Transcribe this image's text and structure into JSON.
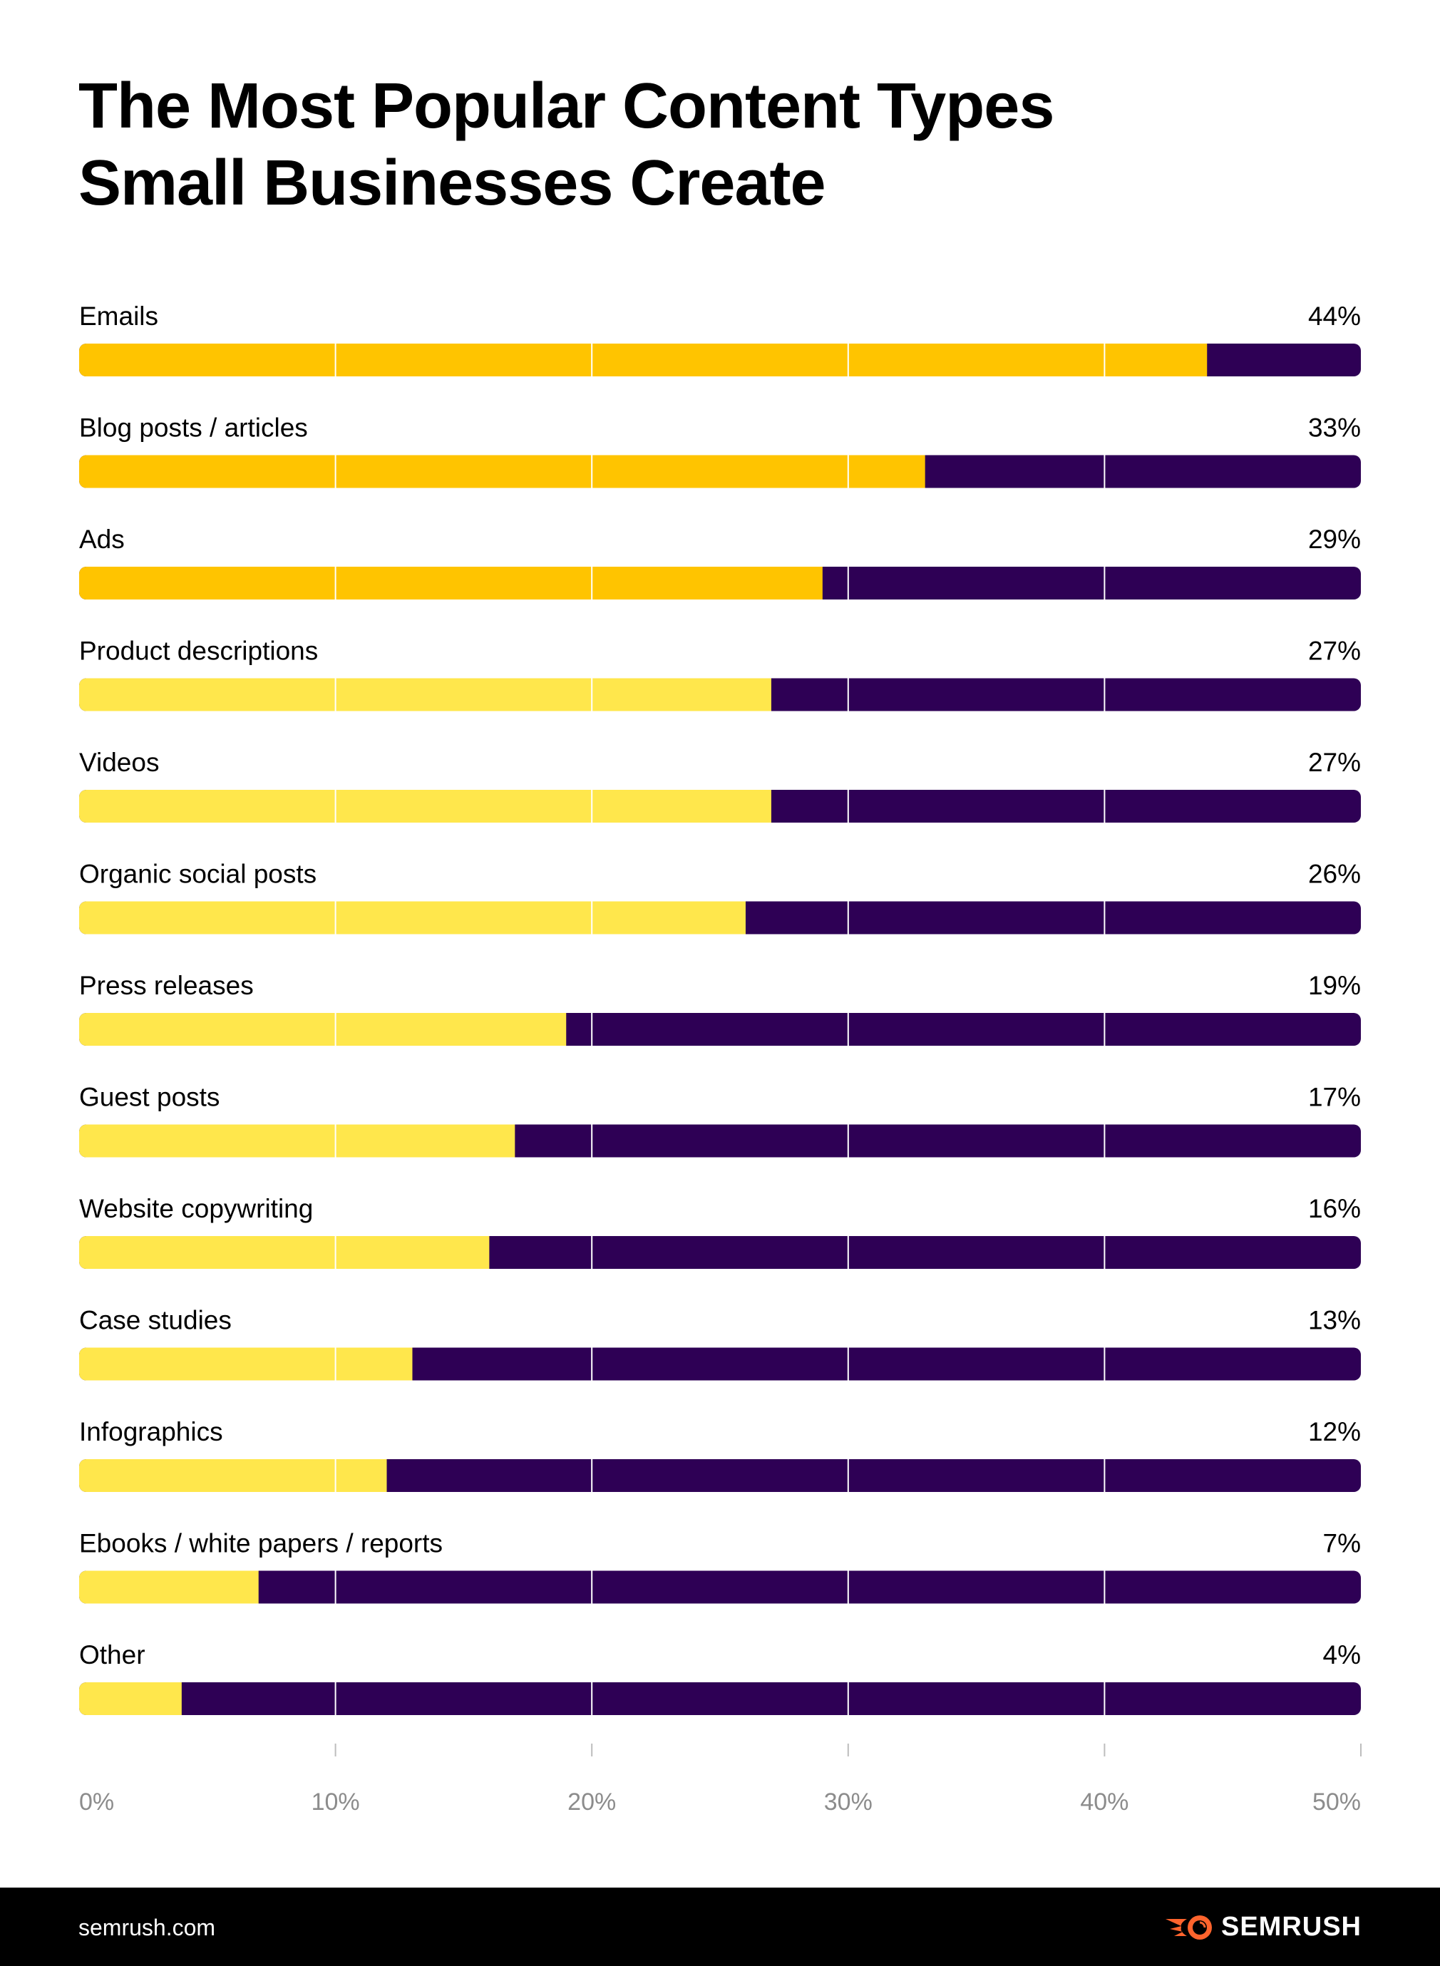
{
  "chart_data": {
    "type": "bar",
    "orientation": "horizontal",
    "title": "The Most Popular Content Types Small Businesses Create",
    "title_lines": [
      "The Most Popular Content Types",
      "Small Businesses Create"
    ],
    "categories": [
      "Emails",
      "Blog posts / articles",
      "Ads",
      "Product descriptions",
      "Videos",
      "Organic social posts",
      "Press releases",
      "Guest posts",
      "Website copywriting",
      "Case studies",
      "Infographics",
      "Ebooks / white papers / reports",
      "Other"
    ],
    "values": [
      44,
      33,
      29,
      27,
      27,
      26,
      19,
      17,
      16,
      13,
      12,
      7,
      4
    ],
    "value_labels": [
      "44%",
      "33%",
      "29%",
      "27%",
      "27%",
      "26%",
      "19%",
      "17%",
      "16%",
      "13%",
      "12%",
      "7%",
      "4%"
    ],
    "highlighted_count": 3,
    "xlim": [
      0,
      50
    ],
    "x_ticks": [
      0,
      10,
      20,
      30,
      40,
      50
    ],
    "x_tick_labels": [
      "0%",
      "10%",
      "20%",
      "30%",
      "40%",
      "50%"
    ],
    "grid": true,
    "xlabel": "",
    "ylabel": "",
    "colors": {
      "highlight": "#FFC400",
      "fill": "#FFE74C",
      "track": "#2E0055",
      "grid": "#FFFFFF",
      "tick_label": "#8C8C8C"
    }
  },
  "footer": {
    "url": "semrush.com",
    "logo": "SEMRUSH",
    "logo_color": "#FF642D"
  }
}
